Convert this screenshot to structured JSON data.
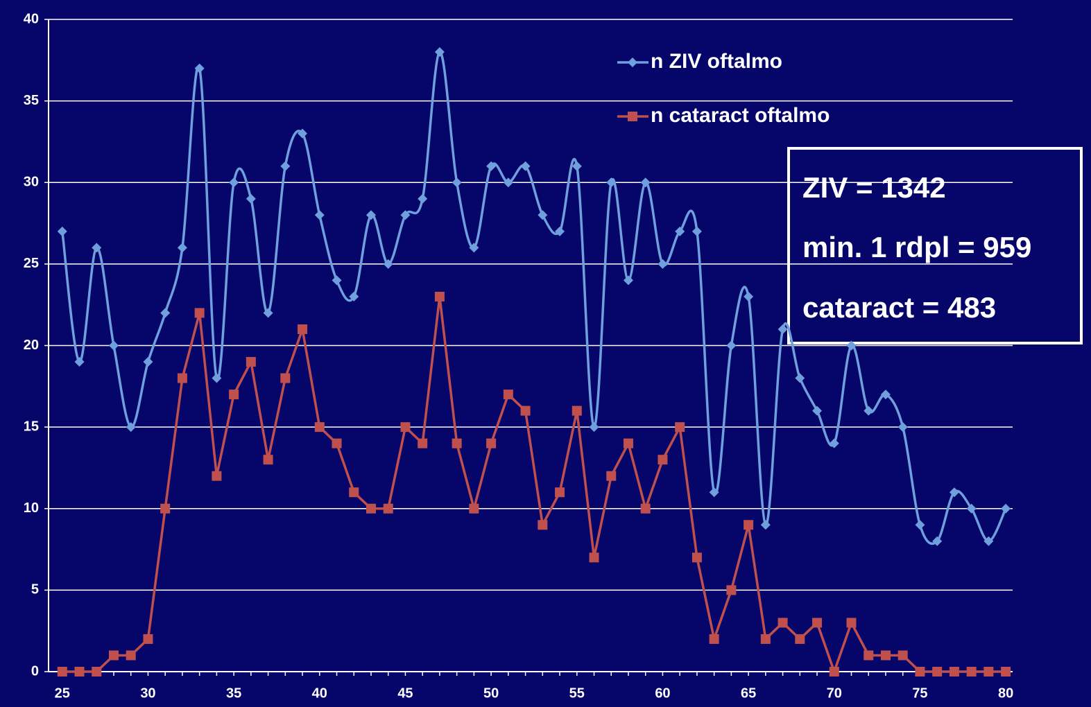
{
  "chart_data": {
    "type": "line",
    "x": [
      25,
      26,
      27,
      28,
      29,
      30,
      31,
      32,
      33,
      34,
      35,
      36,
      37,
      38,
      39,
      40,
      41,
      42,
      43,
      44,
      45,
      46,
      47,
      48,
      49,
      50,
      51,
      52,
      53,
      54,
      55,
      56,
      57,
      58,
      59,
      60,
      61,
      62,
      63,
      64,
      65,
      66,
      67,
      68,
      69,
      70,
      71,
      72,
      73,
      74,
      75,
      76,
      77,
      78,
      79,
      80
    ],
    "series": [
      {
        "name": "n ZIV oftalmo",
        "color": "#6f9fdc",
        "marker": "diamond",
        "smooth": true,
        "values": [
          27,
          19,
          26,
          20,
          15,
          19,
          22,
          26,
          37,
          18,
          30,
          29,
          22,
          31,
          33,
          28,
          24,
          23,
          28,
          25,
          28,
          29,
          38,
          30,
          26,
          31,
          30,
          31,
          28,
          27,
          31,
          15,
          30,
          24,
          30,
          25,
          27,
          27,
          11,
          20,
          23,
          9,
          21,
          18,
          16,
          14,
          20,
          16,
          17,
          15,
          9,
          8,
          11,
          10,
          8,
          10
        ]
      },
      {
        "name": "n cataract oftalmo",
        "color": "#c0504d",
        "marker": "square",
        "smooth": false,
        "values": [
          0,
          0,
          0,
          1,
          1,
          2,
          10,
          18,
          22,
          12,
          17,
          19,
          13,
          18,
          21,
          15,
          14,
          11,
          10,
          10,
          15,
          14,
          23,
          14,
          10,
          14,
          17,
          16,
          9,
          11,
          16,
          7,
          12,
          14,
          10,
          13,
          15,
          7,
          2,
          5,
          9,
          2,
          3,
          2,
          3,
          0,
          3,
          1,
          1,
          1,
          0,
          0,
          0,
          0,
          0,
          0
        ]
      }
    ],
    "annotations": [
      "ZIV = 1342",
      "min. 1 rdpl = 959",
      "cataract = 483"
    ],
    "xlim": [
      24.2,
      80.4
    ],
    "xticks": [
      25,
      30,
      35,
      40,
      45,
      50,
      55,
      60,
      65,
      70,
      75,
      80
    ],
    "ylim": [
      0,
      40
    ],
    "yticks": [
      0,
      5,
      10,
      15,
      20,
      25,
      30,
      35,
      40
    ],
    "grid": true
  }
}
